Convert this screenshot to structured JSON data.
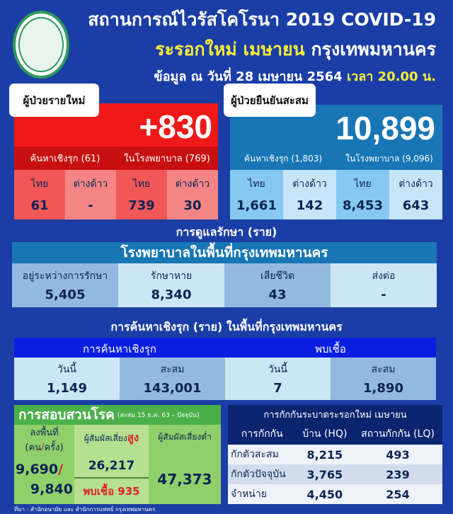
{
  "header": {
    "title": "สถานการณ์ไวรัสโคโรนา 2019 COVID-19",
    "wave": "ระรอกใหม่ เมษายน",
    "city": "กรุงเทพมหานคร",
    "date": "ข้อมูล ณ วันที่ 28 เมษายน 2564",
    "time": "เวลา 20.00 น."
  },
  "new_cases": {
    "label": "ผู้ป่วยรายใหม่",
    "total": "+830",
    "groups": [
      "ค้นหาเชิงรุก (61)",
      "ในโรงพยาบาล (769)"
    ],
    "cells": [
      {
        "label": "ไทย",
        "value": "61"
      },
      {
        "label": "ต่างด้าว",
        "value": "-"
      },
      {
        "label": "ไทย",
        "value": "739"
      },
      {
        "label": "ต่างด้าว",
        "value": "30"
      }
    ]
  },
  "cumulative": {
    "label": "ผู้ป่วยยืนยันสะสม",
    "total": "10,899",
    "groups": [
      "ค้นหาเชิงรุก (1,803)",
      "ในโรงพยาบาล (9,096)"
    ],
    "cells": [
      {
        "label": "ไทย",
        "value": "1,661"
      },
      {
        "label": "ต่างด้าว",
        "value": "142"
      },
      {
        "label": "ไทย",
        "value": "8,453"
      },
      {
        "label": "ต่างด้าว",
        "value": "643"
      }
    ]
  },
  "treatment": {
    "title": "การดูแลรักษา (ราย)",
    "header": "โรงพยาบาลในพื้นที่กรุงเทพมหานคร",
    "cells": [
      {
        "label": "อยู่ระหว่างการรักษา",
        "value": "5,405"
      },
      {
        "label": "รักษาหาย",
        "value": "8,340"
      },
      {
        "label": "เสียชีวิต",
        "value": "43"
      },
      {
        "label": "ส่งต่อ",
        "value": "-"
      }
    ]
  },
  "active_search": {
    "title": "การค้นหาเชิงรุก (ราย) ในพื้นที่กรุงเทพมหานคร",
    "groups": [
      "การค้นหาเชิงรุก",
      "พบเชื้อ"
    ],
    "cells": [
      {
        "label": "วันนี้",
        "value": "1,149"
      },
      {
        "label": "สะสม",
        "value": "143,001"
      },
      {
        "label": "วันนี้",
        "value": "7"
      },
      {
        "label": "สะสม",
        "value": "1,890"
      }
    ]
  },
  "investigation": {
    "title": "การสอบสวนโรค",
    "note": "(สะสม 15 ธ.ค. 63 – ปัจจุบัน)",
    "col1_label": "ลงพื้นที่",
    "col1_sub_a": "(คน",
    "col1_sub_sep": "/",
    "col1_sub_b": "ครั้ง)",
    "col1_val_a": "9,690",
    "col1_slash": "/",
    "col1_val_b": "9,840",
    "col2_label": "ผู้สัมผัสเสี่ยง",
    "col2_high": "สูง",
    "col2_value": "26,217",
    "col2_found": "พบเชื้อ 935",
    "col3_label": "ผู้สัมผัสเสี่ยงต่ำ",
    "col3_value": "47,373"
  },
  "quarantine": {
    "title": "การกักกันระบาดระรอกใหม่ เมษายน",
    "headers": [
      "การกักกัน",
      "บ้าน (HQ)",
      "สถานกักกัน (LQ)"
    ],
    "rows": [
      [
        "กักตัวสะสม",
        "8,215",
        "493"
      ],
      [
        "กักตัวปัจจุบัน",
        "3,765",
        "239"
      ],
      [
        "จำหน่าย",
        "4,450",
        "254"
      ]
    ]
  },
  "source": "ที่มา : สำนักอนามัย และ สำนักการแพทย์ กรุงเทพมหานคร"
}
